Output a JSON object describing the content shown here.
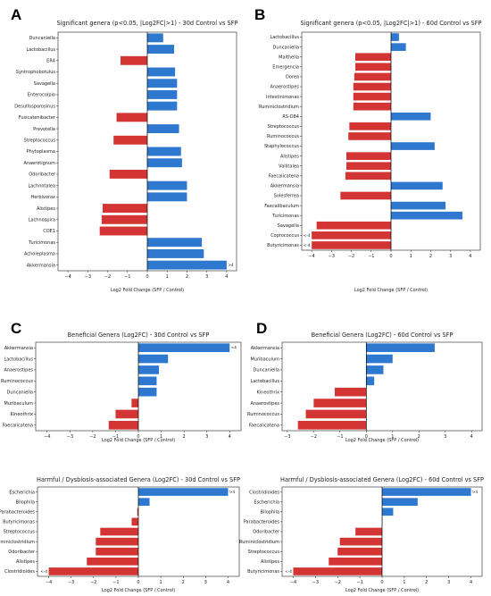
{
  "colors": {
    "positive": "#2f78cf",
    "negative": "#d33535",
    "axis": "#222222",
    "zero_line": "#000000"
  },
  "chart_data": [
    {
      "panel": "A",
      "type": "bar",
      "orientation": "horizontal",
      "title": "Significant genera (p<0.05, |Log2FC|>1) - 30d Control vs SFP",
      "xlabel": "Log2 Fold Change (SFP / Control)",
      "xlim": [
        -4.5,
        4.5
      ],
      "xticks": [
        "−4",
        "−3",
        "−2",
        "−1",
        "0",
        "1",
        "2",
        "3",
        "4"
      ],
      "categories": [
        "Duncaniella",
        "Lactobacillus",
        "ER4",
        "Syntrophobotulus",
        "Savagella",
        "Enterocolpio",
        "Desulfosporosinus",
        "Fusicatenibacter",
        "Prevotella",
        "Streptococcus",
        "Phytoplasma",
        "Anaerotignum",
        "Odoribacter",
        "Lachnotalea",
        "Herbivorax",
        "Alistipes",
        "Lachnospira",
        "COE1",
        "Turicimonas",
        "Acholeplasma",
        "Akkermansia"
      ],
      "values": [
        0.8,
        1.35,
        -1.35,
        1.4,
        1.5,
        1.5,
        1.5,
        -1.55,
        1.6,
        -1.7,
        1.7,
        1.75,
        -1.9,
        2.0,
        2.0,
        -2.25,
        -2.3,
        -2.4,
        2.75,
        2.85,
        4.0
      ],
      "annotations": [
        {
          "category": "Akkermansia",
          "text": ">4"
        }
      ]
    },
    {
      "panel": "B",
      "type": "bar",
      "orientation": "horizontal",
      "title": "Significant genera (p<0.05, |Log2FC|>1) - 60d Control vs SFP",
      "xlabel": "Log2 Fold Change (SFP / Control)",
      "xlim": [
        -4.5,
        4.5
      ],
      "xticks": [
        "−4",
        "−3",
        "−2",
        "−1",
        "0",
        "1",
        "2",
        "3",
        "4"
      ],
      "categories": [
        "Lactobacillus",
        "Duncaniella",
        "Malthella",
        "Emergencia",
        "Dorea",
        "Anaerostipes",
        "Intestinimonas",
        "Ruminiclostridium",
        "RS-D84",
        "Streptococcus",
        "Ruminococcus",
        "Staphylococcus",
        "Alistipes",
        "Vallitalea",
        "Faecalicatena",
        "Akkermansia",
        "Solesferrea",
        "Faecalibaculum",
        "Turicimonas",
        "Savagella",
        "Coprococcus",
        "Butyricimonas"
      ],
      "values": [
        0.4,
        0.75,
        -1.8,
        -1.8,
        -1.85,
        -1.9,
        -1.9,
        -1.9,
        2.0,
        -2.1,
        -2.15,
        2.2,
        -2.25,
        -2.25,
        -2.3,
        2.6,
        -2.55,
        2.75,
        3.6,
        -3.75,
        -4.0,
        -4.0
      ],
      "annotations": [
        {
          "category": "Coprococcus",
          "text": "<-4"
        },
        {
          "category": "Butyricimonas",
          "text": "<-4"
        }
      ]
    },
    {
      "panel": "C",
      "type": "bar",
      "orientation": "horizontal",
      "title": "Beneficial Genera (Log2FC) - 30d Control vs SFP",
      "xlabel": "Log2 Fold Change (SFP / Control)",
      "xlim": [
        -4.5,
        4.5
      ],
      "xticks": [
        "−4",
        "−3",
        "−2",
        "−1",
        "0",
        "1",
        "2",
        "3",
        "4"
      ],
      "categories": [
        "Akkermansia",
        "Lactobacillus",
        "Anaerostipes",
        "Ruminococcus",
        "Duncaniella",
        "Muribaculum",
        "Kineothrix",
        "Faecalicatena"
      ],
      "values": [
        4.0,
        1.3,
        0.9,
        0.8,
        0.8,
        -0.3,
        -1.0,
        -1.3
      ],
      "annotations": [
        {
          "category": "Akkermansia",
          "text": ">4"
        }
      ]
    },
    {
      "panel": "D",
      "type": "bar",
      "orientation": "horizontal",
      "title": "Beneficial Genera (Log2FC) - 60d Control vs SFP",
      "xlabel": "Log2 Fold Change (SFP / Control)",
      "xlim": [
        -3.2,
        4.4
      ],
      "xticks": [
        "−3",
        "−2",
        "−1",
        "0",
        "1",
        "2",
        "3",
        "4"
      ],
      "categories": [
        "Akkermansia",
        "Muribaculum",
        "Duncaniella",
        "Lactobacillus",
        "Kineothrix",
        "Anaerostipes",
        "Ruminococcus",
        "Faecalicatena"
      ],
      "values": [
        2.6,
        1.0,
        0.65,
        0.3,
        -1.2,
        -2.0,
        -2.3,
        -2.6
      ],
      "annotations": []
    },
    {
      "panel": "C-lower",
      "type": "bar",
      "orientation": "horizontal",
      "title": "Harmful / Dysbiosis-associated Genera (Log2FC) - 30d Control vs SFP",
      "xlabel": "Log2 Fold Change (SFP / Control)",
      "xlim": [
        -4.5,
        4.5
      ],
      "xticks": [
        "−4",
        "−3",
        "−2",
        "−1",
        "0",
        "1",
        "2",
        "3",
        "4"
      ],
      "categories": [
        "Escherichia",
        "Bilophila",
        "Parabacteroides",
        "Butyricimonas",
        "Streptococcus",
        "Ruminiclostridium",
        "Odoribacter",
        "Alistipes",
        "Clostridioides"
      ],
      "values": [
        4.0,
        0.5,
        -0.05,
        -0.3,
        -1.7,
        -1.9,
        -1.9,
        -2.3,
        -4.0
      ],
      "annotations": [
        {
          "category": "Escherichia",
          "text": ">4"
        },
        {
          "category": "Clostridioides",
          "text": "<-4"
        }
      ]
    },
    {
      "panel": "D-lower",
      "type": "bar",
      "orientation": "horizontal",
      "title": "Harmful / Dysbiosis-associated Genera (Log2FC) - 60d Control vs SFP",
      "xlabel": "Log2 Fold Change (SFP / Control)",
      "xlim": [
        -4.5,
        4.5
      ],
      "xticks": [
        "−4",
        "−3",
        "−2",
        "−1",
        "0",
        "1",
        "2",
        "3",
        "4"
      ],
      "categories": [
        "Clostridioides",
        "Escherichia",
        "Bilophila",
        "Parabacteroides",
        "Odoribacter",
        "Ruminiclostridium",
        "Streptococcus",
        "Alistipes",
        "Butyricimonas"
      ],
      "values": [
        4.0,
        1.6,
        0.5,
        0.0,
        -1.2,
        -1.9,
        -2.0,
        -2.4,
        -4.0
      ],
      "annotations": [
        {
          "category": "Clostridioides",
          "text": ">4"
        },
        {
          "category": "Butyricimonas",
          "text": "<-4"
        }
      ]
    }
  ],
  "panel_letters": [
    {
      "letter": "A",
      "panel": "A"
    },
    {
      "letter": "B",
      "panel": "B"
    },
    {
      "letter": "C",
      "panel": "C"
    },
    {
      "letter": "D",
      "panel": "D"
    }
  ]
}
